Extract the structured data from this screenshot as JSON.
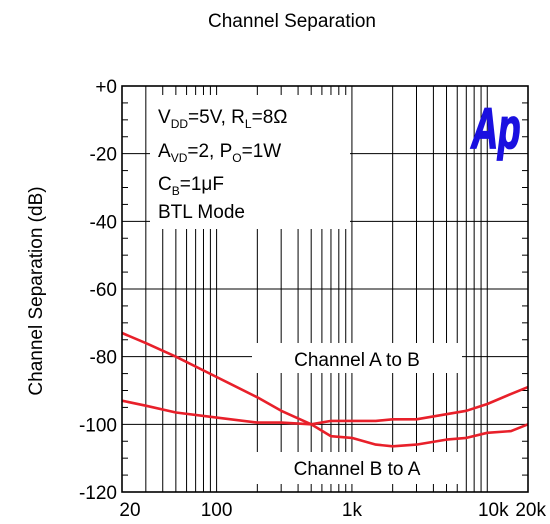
{
  "chart_data": {
    "type": "line",
    "title": "Channel Separation",
    "ylabel": "Channel Separation (dB)",
    "xlabel": "",
    "x_scale": "log",
    "xlim": [
      20,
      20000
    ],
    "ylim": [
      -120,
      0
    ],
    "grid": true,
    "x_tick_labels": [
      {
        "value": 20,
        "label": "20"
      },
      {
        "value": 100,
        "label": "100"
      },
      {
        "value": 1000,
        "label": "1k"
      },
      {
        "value": 10000,
        "label": "10k"
      },
      {
        "value": 20000,
        "label": "20k"
      }
    ],
    "y_tick_labels": [
      {
        "value": 0,
        "label": "+0"
      },
      {
        "value": -20,
        "label": "-20"
      },
      {
        "value": -40,
        "label": "-40"
      },
      {
        "value": -60,
        "label": "-60"
      },
      {
        "value": -80,
        "label": "-80"
      },
      {
        "value": -100,
        "label": "-100"
      },
      {
        "value": -120,
        "label": "-120"
      }
    ],
    "conditions": {
      "line1": {
        "a": "V",
        "a_sub": "DD",
        "a_rest": "=5V, R",
        "b_sub": "L",
        "b_rest": "=8Ω"
      },
      "line2": {
        "a": "A",
        "a_sub": "VD",
        "a_rest": "=2, P",
        "b_sub": "O",
        "b_rest": "=1W"
      },
      "line3": {
        "a": "C",
        "a_sub": "B",
        "a_rest": "=1μF"
      },
      "line4": "BTL Mode"
    },
    "logo": "Ap",
    "series": [
      {
        "name": "Channel A to B",
        "x": [
          20,
          30,
          50,
          100,
          200,
          300,
          500,
          700,
          1000,
          1500,
          2000,
          3000,
          5000,
          7000,
          10000,
          15000,
          20000
        ],
        "y": [
          -73,
          -76,
          -80,
          -86,
          -92,
          -96,
          -100,
          -103.5,
          -104,
          -106,
          -106.5,
          -106,
          -104.5,
          -104,
          -102.5,
          -102,
          -100
        ]
      },
      {
        "name": "Channel B to A",
        "x": [
          20,
          30,
          50,
          100,
          200,
          300,
          500,
          700,
          1000,
          1500,
          2000,
          3000,
          5000,
          7000,
          10000,
          15000,
          20000
        ],
        "y": [
          -93,
          -94.5,
          -96.5,
          -98,
          -99.5,
          -99.5,
          -100,
          -99,
          -99,
          -99,
          -98.5,
          -98.5,
          -97,
          -96,
          -94,
          -91,
          -89
        ]
      }
    ],
    "annotations": [
      {
        "text": "Channel A to B",
        "x": 1000,
        "y": -80
      },
      {
        "text": "Channel B to A",
        "x": 1000,
        "y": -113
      }
    ],
    "line_color": "#e8202a",
    "logo_color": "#1a10e0"
  }
}
